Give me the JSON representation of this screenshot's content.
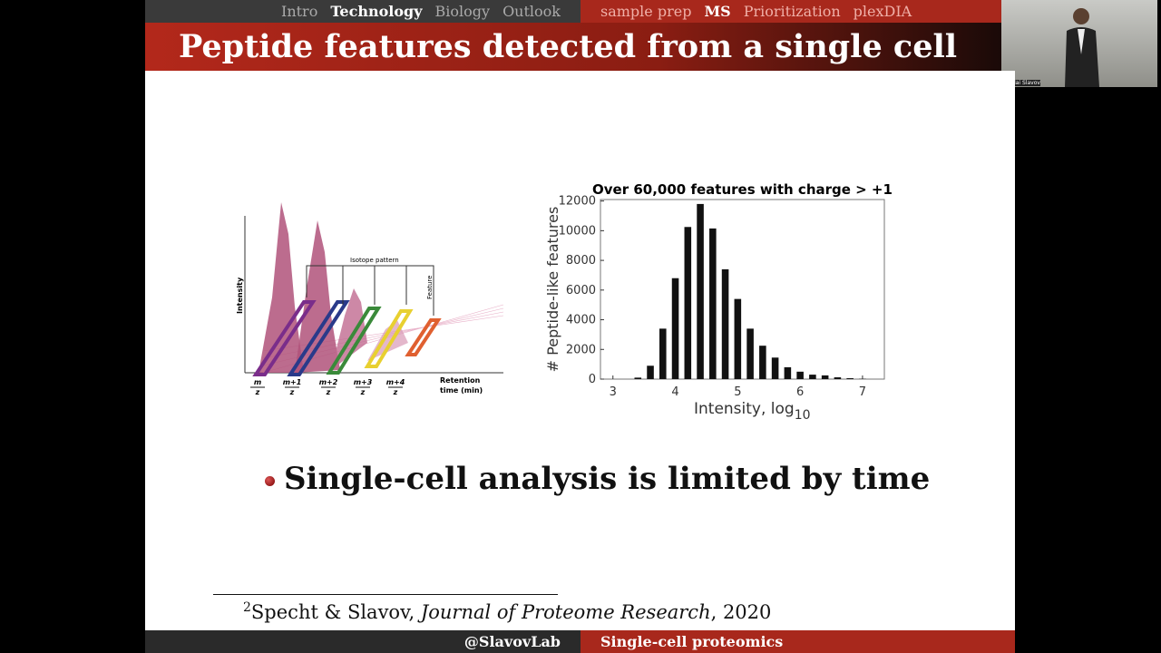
{
  "nav": {
    "sections": [
      "Intro",
      "Technology",
      "Biology",
      "Outlook"
    ],
    "subsections": [
      "sample prep",
      "MS",
      "Prioritization",
      "plexDIA"
    ]
  },
  "slide_title": "Peptide features detected from a single cell",
  "webcam": {
    "name": "Nikolai Slavov"
  },
  "diagram": {
    "y_label": "Intensity",
    "isotope_label": "Isotope pattern",
    "feature_label": "Feature",
    "isotopes": [
      "m",
      "m+1",
      "m+2",
      "m+3",
      "m+4"
    ],
    "denominator": "z",
    "x_label": [
      "Retention",
      "time (min)"
    ]
  },
  "chart_data": {
    "type": "histogram",
    "title": "Over 60,000 features with charge > +1",
    "xlabel": "Intensity, log",
    "xlabel_sub": "10",
    "ylabel": "# Peptide-like features",
    "bins": [
      3.3,
      3.5,
      3.7,
      3.9,
      4.1,
      4.3,
      4.5,
      4.7,
      4.9,
      5.1,
      5.3,
      5.5,
      5.7,
      5.9,
      6.1,
      6.3,
      6.5,
      6.7,
      6.9,
      7.1
    ],
    "counts": [
      100,
      900,
      3400,
      6800,
      10250,
      11800,
      10150,
      7400,
      5400,
      3400,
      2250,
      1450,
      800,
      500,
      300,
      250,
      120,
      60,
      20
    ],
    "color": "#111111",
    "xlim": [
      2.8,
      7.35
    ],
    "ylim": [
      0,
      12100
    ],
    "xticks": [
      3,
      4,
      5,
      6,
      7
    ],
    "yticks": [
      0,
      2000,
      4000,
      6000,
      8000,
      10000,
      12000
    ]
  },
  "bullet": "Single-cell analysis is limited by time",
  "footnote": {
    "mark": "2",
    "authors": "Specht & Slavov, ",
    "journal": "Journal of Proteome Research",
    "year": ", 2020"
  },
  "footer": {
    "handle": "@SlavovLab",
    "topic": "Single-cell proteomics"
  }
}
